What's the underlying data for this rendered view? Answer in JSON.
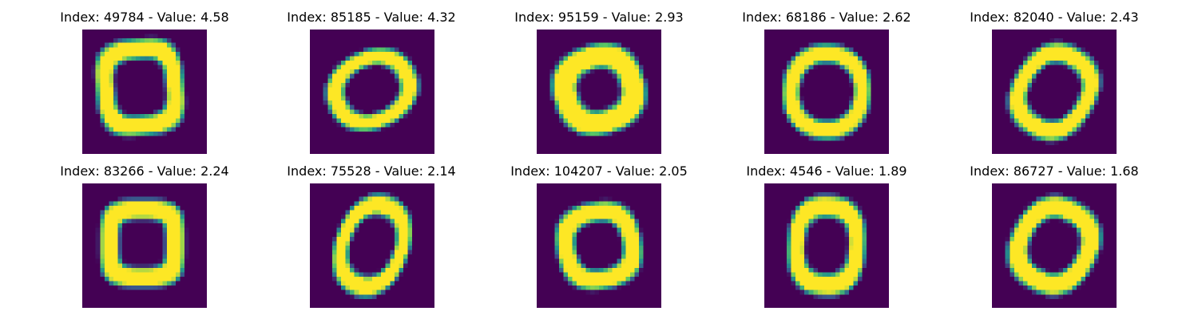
{
  "figure": {
    "colormap": "viridis",
    "background": "#ffffff",
    "panel_background": "#440154",
    "stroke_color": "#fde725",
    "rows": 2,
    "cols": 5,
    "panels": [
      {
        "title": "Index: 49784 - Value: 4.58",
        "index": 49784,
        "value": 4.58,
        "depicts": "handwritten zero, squarish"
      },
      {
        "title": "Index: 85185 - Value: 4.32",
        "index": 85185,
        "value": 4.32,
        "depicts": "handwritten zero, open top-right"
      },
      {
        "title": "Index: 95159 - Value: 2.93",
        "index": 95159,
        "value": 2.93,
        "depicts": "handwritten zero, thick stroke"
      },
      {
        "title": "Index: 68186 - Value: 2.62",
        "index": 68186,
        "value": 2.62,
        "depicts": "handwritten zero, round"
      },
      {
        "title": "Index: 82040 - Value: 2.43",
        "index": 82040,
        "value": 2.43,
        "depicts": "handwritten zero, tilted"
      },
      {
        "title": "Index: 83266 - Value: 2.24",
        "index": 83266,
        "value": 2.24,
        "depicts": "handwritten zero, boxy"
      },
      {
        "title": "Index: 75528 - Value: 2.14",
        "index": 75528,
        "value": 2.14,
        "depicts": "handwritten zero, slanted oval"
      },
      {
        "title": "Index: 104207 - Value: 2.05",
        "index": 104207,
        "value": 2.05,
        "depicts": "handwritten zero, round"
      },
      {
        "title": "Index: 4546 - Value: 1.89",
        "index": 4546,
        "value": 1.89,
        "depicts": "handwritten zero, upright"
      },
      {
        "title": "Index: 86727 - Value: 1.68",
        "index": 86727,
        "value": 1.68,
        "depicts": "handwritten zero, tilted"
      }
    ]
  }
}
